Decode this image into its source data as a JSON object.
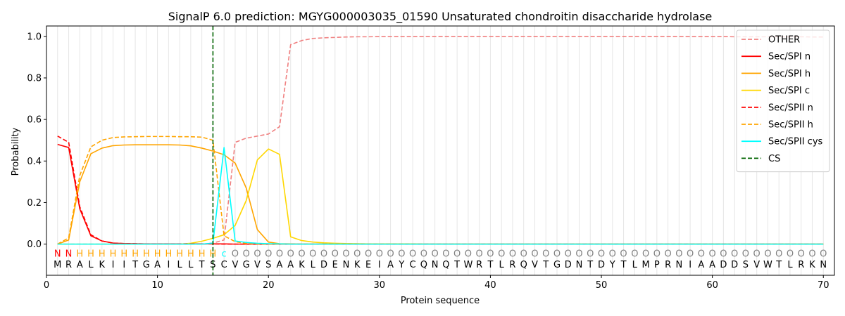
{
  "chart_data": {
    "type": "line",
    "title": "SignalP 6.0 prediction: MGYG000003035_01590 Unsaturated chondroitin disaccharide hydrolase",
    "xlabel": "Protein sequence",
    "ylabel": "Probability",
    "xlim": [
      0,
      71
    ],
    "ylim": [
      -0.15,
      1.05
    ],
    "xticks": [
      0,
      10,
      20,
      30,
      40,
      50,
      60,
      70
    ],
    "yticks": [
      0.0,
      0.2,
      0.4,
      0.6,
      0.8,
      1.0
    ],
    "ytick_labels": [
      "0.0",
      "0.2",
      "0.4",
      "0.6",
      "0.8",
      "1.0"
    ],
    "grid": "vertical lines at each residue",
    "legend_position": "top-right",
    "sequence": [
      "M",
      "R",
      "A",
      "L",
      "K",
      "I",
      "I",
      "T",
      "G",
      "A",
      "I",
      "L",
      "L",
      "T",
      "S",
      "C",
      "V",
      "G",
      "V",
      "S",
      "A",
      "A",
      "K",
      "L",
      "D",
      "E",
      "N",
      "K",
      "E",
      "I",
      "A",
      "Y",
      "C",
      "Q",
      "N",
      "Q",
      "T",
      "W",
      "R",
      "T",
      "L",
      "R",
      "Q",
      "V",
      "T",
      "G",
      "D",
      "N",
      "T",
      "D",
      "Y",
      "T",
      "L",
      "M",
      "P",
      "R",
      "N",
      "I",
      "A",
      "A",
      "D",
      "D",
      "S",
      "V",
      "W",
      "T",
      "L",
      "R",
      "K",
      "N"
    ],
    "region_labels": [
      "N",
      "N",
      "H",
      "H",
      "H",
      "H",
      "H",
      "H",
      "H",
      "H",
      "H",
      "H",
      "H",
      "H",
      "H",
      "c",
      "O",
      "O",
      "O",
      "O",
      "O",
      "O",
      "O",
      "O",
      "O",
      "O",
      "O",
      "O",
      "O",
      "O",
      "O",
      "O",
      "O",
      "O",
      "O",
      "O",
      "O",
      "O",
      "O",
      "O",
      "O",
      "O",
      "O",
      "O",
      "O",
      "O",
      "O",
      "O",
      "O",
      "O",
      "O",
      "O",
      "O",
      "O",
      "O",
      "O",
      "O",
      "O",
      "O",
      "O",
      "O",
      "O",
      "O",
      "O",
      "O",
      "O",
      "O",
      "O",
      "O",
      "O"
    ],
    "region_label_colors": {
      "N": "#ff0000",
      "H": "#ffa500",
      "c": "#00ffff",
      "O": "#808080"
    },
    "cleavage_site": 15,
    "series": [
      {
        "name": "OTHER",
        "color": "#f08080",
        "dash": "dashed",
        "values": [
          0.0,
          0.0,
          0.0,
          0.0,
          0.0,
          0.0,
          0.0,
          0.0,
          0.0,
          0.0,
          0.0,
          0.0,
          0.0,
          0.0,
          0.005,
          0.02,
          0.49,
          0.51,
          0.52,
          0.53,
          0.565,
          0.96,
          0.98,
          0.99,
          0.993,
          0.995,
          0.997,
          0.998,
          0.998,
          0.999,
          0.999,
          0.999,
          0.999,
          1.0,
          1.0,
          1.0,
          1.0,
          1.0,
          1.0,
          1.0,
          1.0,
          1.0,
          1.0,
          1.0,
          1.0,
          1.0,
          1.0,
          1.0,
          1.0,
          1.0,
          1.0,
          1.0,
          1.0,
          1.0,
          1.0,
          1.0,
          1.0,
          0.999,
          0.999,
          0.999,
          0.999,
          0.998,
          0.998,
          0.998,
          0.998,
          0.998,
          0.998,
          0.998,
          0.997,
          0.997
        ]
      },
      {
        "name": "Sec/SPI n",
        "color": "#ff0000",
        "dash": "solid",
        "values": [
          0.48,
          0.465,
          0.17,
          0.04,
          0.015,
          0.005,
          0.003,
          0.002,
          0.001,
          0.001,
          0.001,
          0.001,
          0.001,
          0.001,
          0.001,
          0.001,
          0.0,
          0.0,
          0.0,
          0.0,
          0.0,
          0.0,
          0.0,
          0.0,
          0.0,
          0.0,
          0.0,
          0.0,
          0.0,
          0.0,
          0.0,
          0.0,
          0.0,
          0.0,
          0.0,
          0.0,
          0.0,
          0.0,
          0.0,
          0.0,
          0.0,
          0.0,
          0.0,
          0.0,
          0.0,
          0.0,
          0.0,
          0.0,
          0.0,
          0.0,
          0.0,
          0.0,
          0.0,
          0.0,
          0.0,
          0.0,
          0.0,
          0.0,
          0.0,
          0.0,
          0.0,
          0.0,
          0.0,
          0.0,
          0.0,
          0.0,
          0.0,
          0.0,
          0.0,
          0.0
        ]
      },
      {
        "name": "Sec/SPI h",
        "color": "#ffa500",
        "dash": "solid",
        "values": [
          0.0,
          0.02,
          0.3,
          0.435,
          0.462,
          0.474,
          0.477,
          0.478,
          0.478,
          0.478,
          0.478,
          0.477,
          0.473,
          0.462,
          0.448,
          0.43,
          0.39,
          0.27,
          0.07,
          0.01,
          0.002,
          0.001,
          0.0,
          0.0,
          0.0,
          0.0,
          0.0,
          0.0,
          0.0,
          0.0,
          0.0,
          0.0,
          0.0,
          0.0,
          0.0,
          0.0,
          0.0,
          0.0,
          0.0,
          0.0,
          0.0,
          0.0,
          0.0,
          0.0,
          0.0,
          0.0,
          0.0,
          0.0,
          0.0,
          0.0,
          0.0,
          0.0,
          0.0,
          0.0,
          0.0,
          0.0,
          0.0,
          0.0,
          0.0,
          0.0,
          0.0,
          0.0,
          0.0,
          0.0,
          0.0,
          0.0,
          0.0,
          0.0,
          0.0,
          0.0
        ]
      },
      {
        "name": "Sec/SPI c",
        "color": "#ffd700",
        "dash": "solid",
        "values": [
          0.0,
          0.0,
          0.0,
          0.0,
          0.0,
          0.0,
          0.0,
          0.0,
          0.0,
          0.0,
          0.0,
          0.0,
          0.004,
          0.014,
          0.028,
          0.045,
          0.09,
          0.21,
          0.405,
          0.458,
          0.432,
          0.035,
          0.017,
          0.01,
          0.006,
          0.004,
          0.003,
          0.002,
          0.001,
          0.001,
          0.001,
          0.001,
          0.001,
          0.0,
          0.0,
          0.0,
          0.0,
          0.0,
          0.0,
          0.0,
          0.0,
          0.0,
          0.0,
          0.0,
          0.0,
          0.0,
          0.0,
          0.0,
          0.0,
          0.0,
          0.0,
          0.0,
          0.0,
          0.0,
          0.0,
          0.0,
          0.0,
          0.0,
          0.0,
          0.0,
          0.0,
          0.0,
          0.0,
          0.0,
          0.0,
          0.0,
          0.0,
          0.0,
          0.0,
          0.0
        ]
      },
      {
        "name": "Sec/SPII n",
        "color": "#ff0000",
        "dash": "dashed",
        "values": [
          0.52,
          0.49,
          0.18,
          0.045,
          0.015,
          0.005,
          0.003,
          0.002,
          0.001,
          0.001,
          0.001,
          0.001,
          0.001,
          0.001,
          0.001,
          0.0,
          0.0,
          0.0,
          0.0,
          0.0,
          0.0,
          0.0,
          0.0,
          0.0,
          0.0,
          0.0,
          0.0,
          0.0,
          0.0,
          0.0,
          0.0,
          0.0,
          0.0,
          0.0,
          0.0,
          0.0,
          0.0,
          0.0,
          0.0,
          0.0,
          0.0,
          0.0,
          0.0,
          0.0,
          0.0,
          0.0,
          0.0,
          0.0,
          0.0,
          0.0,
          0.0,
          0.0,
          0.0,
          0.0,
          0.0,
          0.0,
          0.0,
          0.0,
          0.0,
          0.0,
          0.0,
          0.0,
          0.0,
          0.0,
          0.0,
          0.0,
          0.0,
          0.0,
          0.0,
          0.0
        ]
      },
      {
        "name": "Sec/SPII h",
        "color": "#ffa500",
        "dash": "dashed",
        "values": [
          0.0,
          0.03,
          0.33,
          0.468,
          0.5,
          0.513,
          0.516,
          0.517,
          0.518,
          0.518,
          0.518,
          0.517,
          0.517,
          0.515,
          0.5,
          0.04,
          0.012,
          0.003,
          0.001,
          0.0,
          0.0,
          0.0,
          0.0,
          0.0,
          0.0,
          0.0,
          0.0,
          0.0,
          0.0,
          0.0,
          0.0,
          0.0,
          0.0,
          0.0,
          0.0,
          0.0,
          0.0,
          0.0,
          0.0,
          0.0,
          0.0,
          0.0,
          0.0,
          0.0,
          0.0,
          0.0,
          0.0,
          0.0,
          0.0,
          0.0,
          0.0,
          0.0,
          0.0,
          0.0,
          0.0,
          0.0,
          0.0,
          0.0,
          0.0,
          0.0,
          0.0,
          0.0,
          0.0,
          0.0,
          0.0,
          0.0,
          0.0,
          0.0,
          0.0,
          0.0
        ]
      },
      {
        "name": "Sec/SPII cys",
        "color": "#00ffff",
        "dash": "solid",
        "values": [
          0.0,
          0.0,
          0.0,
          0.0,
          0.0,
          0.0,
          0.0,
          0.0,
          0.0,
          0.0,
          0.0,
          0.0,
          0.0,
          0.0,
          0.005,
          0.465,
          0.015,
          0.008,
          0.004,
          0.002,
          0.001,
          0.0,
          0.0,
          0.0,
          0.0,
          0.0,
          0.0,
          0.0,
          0.0,
          0.0,
          0.0,
          0.0,
          0.0,
          0.0,
          0.0,
          0.0,
          0.0,
          0.0,
          0.0,
          0.0,
          0.0,
          0.0,
          0.0,
          0.0,
          0.0,
          0.0,
          0.0,
          0.0,
          0.0,
          0.0,
          0.0,
          0.0,
          0.0,
          0.0,
          0.0,
          0.0,
          0.0,
          0.0,
          0.0,
          0.0,
          0.0,
          0.0,
          0.0,
          0.0,
          0.0,
          0.0,
          0.0,
          0.0,
          0.0,
          0.0
        ]
      }
    ],
    "legend": [
      {
        "name": "OTHER",
        "color": "#f08080",
        "dash": "dashed"
      },
      {
        "name": "Sec/SPI n",
        "color": "#ff0000",
        "dash": "solid"
      },
      {
        "name": "Sec/SPI h",
        "color": "#ffa500",
        "dash": "solid"
      },
      {
        "name": "Sec/SPI c",
        "color": "#ffd700",
        "dash": "solid"
      },
      {
        "name": "Sec/SPII n",
        "color": "#ff0000",
        "dash": "dashed"
      },
      {
        "name": "Sec/SPII h",
        "color": "#ffa500",
        "dash": "dashed"
      },
      {
        "name": "Sec/SPII cys",
        "color": "#00ffff",
        "dash": "solid"
      },
      {
        "name": "CS",
        "color": "#006400",
        "dash": "dashed"
      }
    ]
  }
}
